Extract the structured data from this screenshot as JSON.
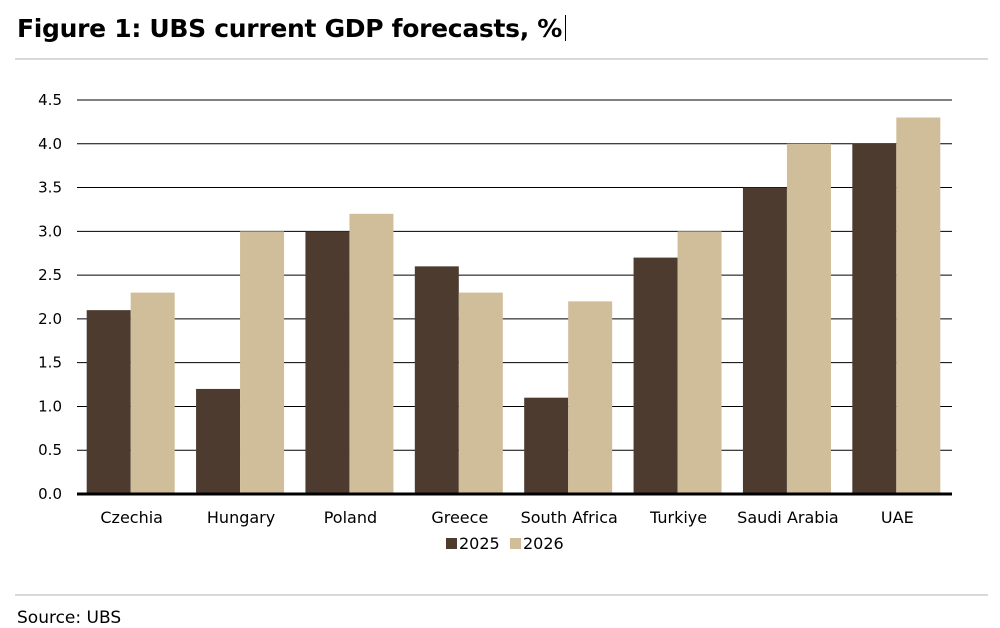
{
  "header": {
    "title": "Figure 1: UBS current GDP forecasts, %"
  },
  "footer": {
    "source": "Source: UBS"
  },
  "colors": {
    "series_2025": "#4d3b30",
    "series_2026": "#d0bd9a",
    "grid": "#000000",
    "rule": "#d9d9d9"
  },
  "chart_data": {
    "type": "bar",
    "title": "Figure 1: UBS current GDP forecasts, %",
    "xlabel": "",
    "ylabel": "",
    "categories": [
      "Czechia",
      "Hungary",
      "Poland",
      "Greece",
      "South Africa",
      "Turkiye",
      "Saudi Arabia",
      "UAE"
    ],
    "series": [
      {
        "name": "2025",
        "values": [
          2.1,
          1.2,
          3.0,
          2.6,
          1.1,
          2.7,
          3.5,
          4.0
        ]
      },
      {
        "name": "2026",
        "values": [
          2.3,
          3.0,
          3.2,
          2.3,
          2.2,
          3.0,
          4.0,
          4.3
        ]
      }
    ],
    "ylim": [
      0,
      4.5
    ],
    "yticks": [
      "0.0",
      "0.5",
      "1.0",
      "1.5",
      "2.0",
      "2.5",
      "3.0",
      "3.5",
      "4.0",
      "4.5"
    ],
    "grid": true,
    "legend": "bottom-center"
  }
}
